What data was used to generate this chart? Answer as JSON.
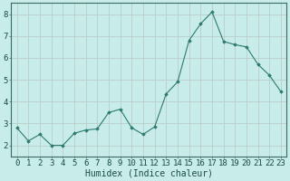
{
  "x": [
    0,
    1,
    2,
    3,
    4,
    5,
    6,
    7,
    8,
    9,
    10,
    11,
    12,
    13,
    14,
    15,
    16,
    17,
    18,
    19,
    20,
    21,
    22,
    23
  ],
  "y": [
    2.8,
    2.2,
    2.5,
    2.0,
    2.0,
    2.55,
    2.7,
    2.75,
    3.5,
    3.65,
    2.8,
    2.5,
    2.85,
    4.35,
    4.9,
    6.8,
    7.55,
    8.1,
    6.75,
    6.6,
    6.5,
    5.7,
    5.2,
    4.45
  ],
  "xlabel": "Humidex (Indice chaleur)",
  "ylim": [
    1.5,
    8.5
  ],
  "xlim": [
    -0.5,
    23.5
  ],
  "yticks": [
    2,
    3,
    4,
    5,
    6,
    7,
    8
  ],
  "xticks": [
    0,
    1,
    2,
    3,
    4,
    5,
    6,
    7,
    8,
    9,
    10,
    11,
    12,
    13,
    14,
    15,
    16,
    17,
    18,
    19,
    20,
    21,
    22,
    23
  ],
  "line_color": "#2d7a6e",
  "marker_color": "#2d7a6e",
  "bg_color": "#c8ecea",
  "grid_color": "#b8c8c4",
  "axis_color": "#3a6b60",
  "font_color": "#1a4a40",
  "xlabel_fontsize": 7,
  "tick_fontsize": 6.5
}
